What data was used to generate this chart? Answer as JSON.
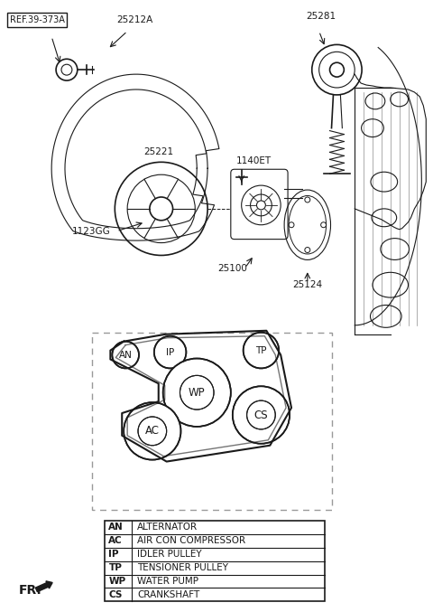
{
  "bg_color": "#ffffff",
  "line_color": "#1a1a1a",
  "ref_label": "REF.39-373A",
  "legend_items": [
    [
      "AN",
      "ALTERNATOR"
    ],
    [
      "AC",
      "AIR CON COMPRESSOR"
    ],
    [
      "IP",
      "IDLER PULLEY"
    ],
    [
      "TP",
      "TENSIONER PULLEY"
    ],
    [
      "WP",
      "WATER PUMP"
    ],
    [
      "CS",
      "CRANKSHAFT"
    ]
  ],
  "fr_label": "FR."
}
